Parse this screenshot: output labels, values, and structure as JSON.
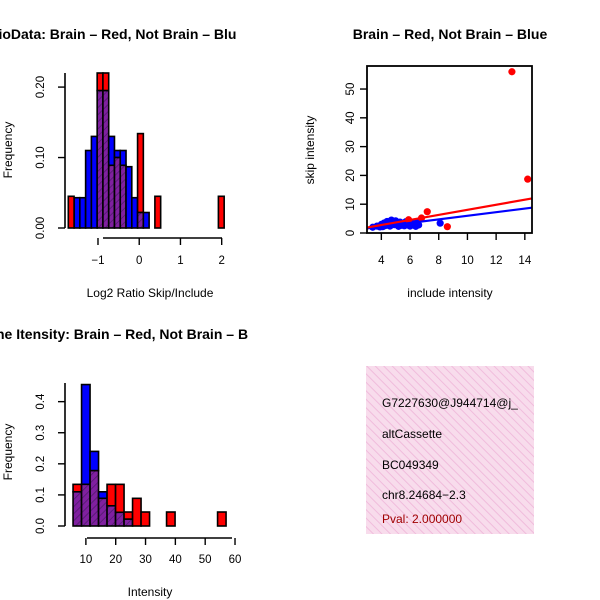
{
  "colors": {
    "red": "#ff0000",
    "blue": "#0000ff",
    "purple": "#8020a0",
    "hatch": "#4a1a66",
    "pink_bg": "#f8dcec",
    "pink_stripe": "#f0bcdc",
    "pval": "#a00000"
  },
  "chart_data": [
    {
      "id": "ratio",
      "type": "bar",
      "subtype": "overlapping-histogram",
      "title": "RatioData: Brain – Red, Not Brain – Blue",
      "title_visible": "atioData: Brain – Red, Not Brain – Blu",
      "xlabel": "Log2 Ratio Skip/Include",
      "ylabel": "Frequency",
      "xlim": [
        -1.8,
        2.25
      ],
      "ylim": [
        0,
        0.22
      ],
      "xticks": [
        -1,
        0,
        1,
        2
      ],
      "xtick_labels": [
        "−1",
        "0",
        "1",
        "2"
      ],
      "yticks": [
        0.0,
        0.1,
        0.2
      ],
      "ytick_labels": [
        "0.00",
        "0.10",
        "0.20"
      ],
      "bin_width": 0.14,
      "series": [
        {
          "name": "Not Brain",
          "color": "blue",
          "bins": [
            {
              "x0": -1.58,
              "v": 0.043
            },
            {
              "x0": -1.44,
              "v": 0.043
            },
            {
              "x0": -1.3,
              "v": 0.11
            },
            {
              "x0": -1.16,
              "v": 0.13
            },
            {
              "x0": -1.02,
              "v": 0.195
            },
            {
              "x0": -0.88,
              "v": 0.195
            },
            {
              "x0": -0.74,
              "v": 0.13
            },
            {
              "x0": -0.6,
              "v": 0.11
            },
            {
              "x0": -0.46,
              "v": 0.11
            },
            {
              "x0": -0.32,
              "v": 0.087
            },
            {
              "x0": -0.18,
              "v": 0.043
            },
            {
              "x0": -0.04,
              "v": 0.022
            },
            {
              "x0": 0.1,
              "v": 0.022
            }
          ]
        },
        {
          "name": "Brain",
          "color": "red",
          "bins": [
            {
              "x0": -1.72,
              "v": 0.045
            },
            {
              "x0": -1.02,
              "v": 0.22
            },
            {
              "x0": -0.88,
              "v": 0.22
            },
            {
              "x0": -0.74,
              "v": 0.089
            },
            {
              "x0": -0.6,
              "v": 0.1
            },
            {
              "x0": -0.46,
              "v": 0.089
            },
            {
              "x0": -0.04,
              "v": 0.134
            },
            {
              "x0": 0.38,
              "v": 0.045
            },
            {
              "x0": 1.92,
              "v": 0.045
            }
          ]
        }
      ]
    },
    {
      "id": "scatter",
      "type": "scatter",
      "title": "Brain – Red, Not Brain – Blue",
      "xlabel": "include intensity",
      "ylabel": "skip intensity",
      "xlim": [
        3,
        14.5
      ],
      "ylim": [
        0,
        58
      ],
      "xticks": [
        4,
        6,
        8,
        10,
        12,
        14
      ],
      "xtick_labels": [
        "4",
        "6",
        "8",
        "10",
        "12",
        "14"
      ],
      "yticks": [
        0,
        10,
        20,
        30,
        40,
        50
      ],
      "ytick_labels": [
        "0",
        "10",
        "20",
        "30",
        "40",
        "50"
      ],
      "series": [
        {
          "name": "Not Brain",
          "color": "blue",
          "points": [
            [
              3.4,
              2.0
            ],
            [
              3.7,
              2.4
            ],
            [
              3.9,
              2.1
            ],
            [
              4.0,
              3.0
            ],
            [
              4.2,
              3.5
            ],
            [
              4.3,
              2.6
            ],
            [
              4.4,
              4.0
            ],
            [
              4.5,
              3.2
            ],
            [
              4.6,
              2.4
            ],
            [
              4.7,
              4.5
            ],
            [
              4.8,
              3.6
            ],
            [
              4.9,
              2.9
            ],
            [
              5.0,
              4.2
            ],
            [
              5.1,
              3.1
            ],
            [
              5.2,
              2.3
            ],
            [
              5.3,
              3.8
            ],
            [
              5.4,
              2.7
            ],
            [
              5.5,
              3.4
            ],
            [
              5.6,
              2.5
            ],
            [
              5.7,
              3.9
            ],
            [
              5.8,
              2.8
            ],
            [
              5.9,
              3.3
            ],
            [
              6.0,
              2.4
            ],
            [
              6.1,
              3.6
            ],
            [
              6.2,
              2.9
            ],
            [
              6.3,
              3.2
            ],
            [
              6.5,
              3.7
            ],
            [
              6.6,
              2.8
            ],
            [
              8.1,
              3.4
            ],
            [
              4.1,
              2.2
            ],
            [
              4.6,
              3.9
            ],
            [
              5.3,
              2.6
            ],
            [
              6.4,
              2.3
            ]
          ],
          "fit": {
            "x": [
              3,
              14.5
            ],
            "y": [
              1.6,
              8.8
            ]
          }
        },
        {
          "name": "Brain",
          "color": "red",
          "points": [
            [
              13.1,
              56.0
            ],
            [
              14.2,
              18.7
            ],
            [
              7.2,
              7.4
            ],
            [
              8.6,
              2.2
            ],
            [
              6.8,
              5.2
            ],
            [
              5.9,
              4.6
            ]
          ],
          "fit": {
            "x": [
              3,
              14.5
            ],
            "y": [
              1.9,
              12.0
            ]
          }
        }
      ]
    },
    {
      "id": "intensity",
      "type": "bar",
      "subtype": "overlapping-histogram",
      "title": "Gene Itensity: Brain – Red, Not Brain – Blue",
      "title_visible": "ne Itensity: Brain – Red, Not Brain – B",
      "xlabel": "Intensity",
      "ylabel": "Frequency",
      "xlim": [
        3,
        61
      ],
      "ylim": [
        0,
        0.46
      ],
      "xticks": [
        10,
        20,
        30,
        40,
        50,
        60
      ],
      "xtick_labels": [
        "10",
        "20",
        "30",
        "40",
        "50",
        "60"
      ],
      "yticks": [
        0.0,
        0.1,
        0.2,
        0.3,
        0.4
      ],
      "ytick_labels": [
        "0.0",
        "0.1",
        "0.2",
        "0.3",
        "0.4"
      ],
      "bin_width": 2.85,
      "series": [
        {
          "name": "Not Brain",
          "color": "blue",
          "bins": [
            {
              "x0": 5.7,
              "v": 0.11
            },
            {
              "x0": 8.55,
              "v": 0.455
            },
            {
              "x0": 11.4,
              "v": 0.24
            },
            {
              "x0": 14.25,
              "v": 0.11
            },
            {
              "x0": 17.1,
              "v": 0.065
            },
            {
              "x0": 19.95,
              "v": 0.044
            },
            {
              "x0": 22.8,
              "v": 0.022
            }
          ]
        },
        {
          "name": "Brain",
          "color": "red",
          "bins": [
            {
              "x0": 5.7,
              "v": 0.134
            },
            {
              "x0": 8.55,
              "v": 0.134
            },
            {
              "x0": 11.4,
              "v": 0.178
            },
            {
              "x0": 14.25,
              "v": 0.089
            },
            {
              "x0": 17.1,
              "v": 0.134
            },
            {
              "x0": 19.95,
              "v": 0.134
            },
            {
              "x0": 22.8,
              "v": 0.045
            },
            {
              "x0": 25.65,
              "v": 0.089
            },
            {
              "x0": 28.5,
              "v": 0.045
            },
            {
              "x0": 37.05,
              "v": 0.045
            },
            {
              "x0": 54.15,
              "v": 0.045
            }
          ]
        }
      ]
    }
  ],
  "info_panel": {
    "lines": [
      "G7227630@J944714@j_",
      "altCassette",
      "BC049349",
      "chr8.24684−2.3"
    ],
    "pval": "Pval: 2.000000"
  }
}
